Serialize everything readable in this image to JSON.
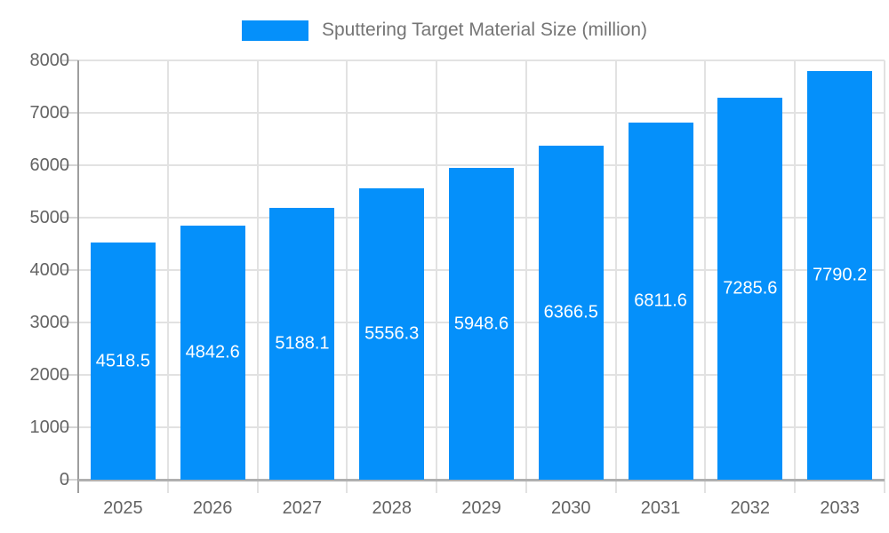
{
  "legend": {
    "label": "Sputtering Target Material Size (million)"
  },
  "colors": {
    "bar": "#0590fa",
    "gridline": "#e2e2e2",
    "axis_line": "#9e9e9e",
    "baseline": "#b0b0b0",
    "y_tick": "#d5d5d5",
    "tick_label_text": "#636363",
    "legend_text": "#757575",
    "bar_label_text": "#ffffff"
  },
  "chart_data": {
    "type": "bar",
    "title": "Sputtering Target Material Size (million)",
    "categories": [
      "2025",
      "2026",
      "2027",
      "2028",
      "2029",
      "2030",
      "2031",
      "2032",
      "2033"
    ],
    "values": [
      4518.5,
      4842.6,
      5188.1,
      5556.3,
      5948.6,
      6366.5,
      6811.6,
      7285.6,
      7790.2
    ],
    "bar_labels": [
      "4518.5",
      "4842.6",
      "5188.1",
      "5556.3",
      "5948.6",
      "6366.5",
      "6811.6",
      "7285.6",
      "7790.2"
    ],
    "xlabel": "",
    "ylabel": "",
    "ylim": [
      0,
      8000
    ],
    "yticks": [
      0,
      1000,
      2000,
      3000,
      4000,
      5000,
      6000,
      7000,
      8000
    ],
    "grid": true,
    "legend_position": "top-center",
    "bar_label_position": "center-of-bar"
  }
}
